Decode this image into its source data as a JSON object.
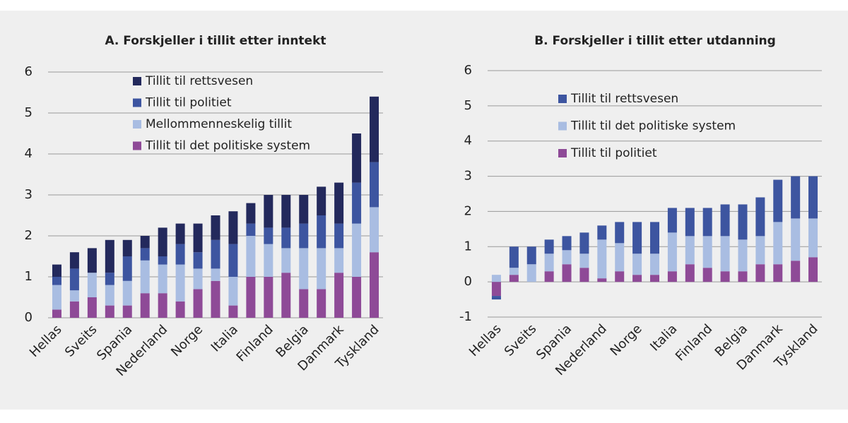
{
  "chart_data": [
    {
      "type": "bar",
      "stacked": true,
      "title": "A. Forskjeller i tillit etter inntekt",
      "categories": [
        "Hellas",
        null,
        "Sveits",
        null,
        "Spania",
        null,
        "Nederland",
        null,
        "Norge",
        null,
        "Italia",
        null,
        "Finland",
        null,
        "Belgia",
        null,
        "Danmark",
        null,
        "Tyskland"
      ],
      "series": [
        {
          "name": "Tillit til rettsvesen",
          "color": "#23295c",
          "values": [
            0.3,
            0.4,
            0.6,
            0.8,
            0.4,
            0.3,
            0.7,
            0.5,
            0.7,
            0.6,
            0.8,
            0.5,
            0.8,
            0.8,
            0.7,
            0.7,
            1.0,
            1.2,
            1.6
          ]
        },
        {
          "name": "Tillit til politiet",
          "color": "#3d55a0",
          "values": [
            0.2,
            0.53,
            0,
            0.3,
            0.6,
            0.3,
            0.2,
            0.5,
            0.4,
            0.7,
            0.8,
            0.3,
            0.4,
            0.5,
            0.6,
            0.8,
            0.6,
            1.0,
            1.1
          ]
        },
        {
          "name": "Mellommenneskelig tillit",
          "color": "#a9bde2",
          "values": [
            0.6,
            0.27,
            0.6,
            0.5,
            0.6,
            0.8,
            0.7,
            0.9,
            0.5,
            0.3,
            0.7,
            1.0,
            0.8,
            0.6,
            1.0,
            1.0,
            0.6,
            1.3,
            1.1
          ]
        },
        {
          "name": "Tillit til det politiske system",
          "color": "#8e4a97",
          "values": [
            0.2,
            0.4,
            0.5,
            0.3,
            0.3,
            0.6,
            0.6,
            0.4,
            0.7,
            0.9,
            0.3,
            1.0,
            1.0,
            1.1,
            0.7,
            0.7,
            1.1,
            1.0,
            1.6
          ]
        }
      ],
      "ylim": [
        0,
        6
      ],
      "yticks": [
        0,
        1,
        2,
        3,
        4,
        5,
        6
      ],
      "grid": true
    },
    {
      "type": "bar",
      "stacked": true,
      "title": "B. Forskjeller i tillit etter utdanning",
      "categories": [
        "Hellas",
        null,
        "Sveits",
        null,
        "Spania",
        null,
        "Nederland",
        null,
        "Norge",
        null,
        "Italia",
        null,
        "Finland",
        null,
        "Belgia",
        null,
        "Danmark",
        null,
        "Tyskland"
      ],
      "series": [
        {
          "name": "Tillit til rettsvesen",
          "color": "#3d55a0",
          "values": [
            -0.1,
            0.6,
            0.5,
            0.4,
            0.4,
            0.6,
            0.4,
            0.6,
            0.9,
            0.9,
            0.7,
            0.8,
            0.8,
            0.9,
            1.0,
            1.1,
            1.2,
            1.2,
            1.2
          ]
        },
        {
          "name": "Tillit til det politiske system",
          "color": "#a9bde2",
          "values": [
            0.2,
            0.2,
            0.5,
            0.5,
            0.4,
            0.4,
            1.1,
            0.8,
            0.6,
            0.6,
            1.1,
            0.8,
            0.9,
            1.0,
            0.9,
            0.8,
            1.2,
            1.2,
            1.1
          ]
        },
        {
          "name": "Tillit til politiet",
          "color": "#8e4a97",
          "values": [
            -0.4,
            0.2,
            0,
            0.3,
            0.5,
            0.4,
            0.1,
            0.3,
            0.2,
            0.2,
            0.3,
            0.5,
            0.4,
            0.3,
            0.3,
            0.5,
            0.5,
            0.6,
            0.7
          ]
        }
      ],
      "ylim": [
        -1,
        6
      ],
      "yticks": [
        -1,
        0,
        1,
        2,
        3,
        4,
        5,
        6
      ],
      "grid": true
    }
  ]
}
